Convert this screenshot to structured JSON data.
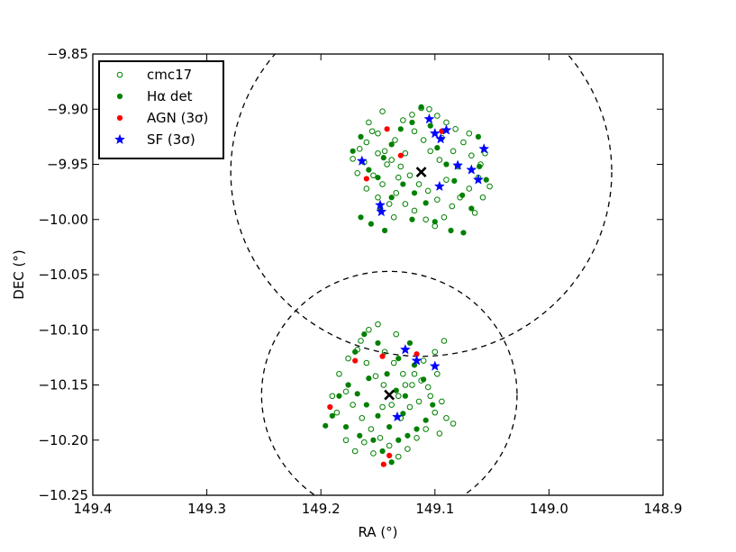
{
  "chart_data": {
    "type": "scatter",
    "xlabel": "RA (°)",
    "ylabel": "DEC (°)",
    "xlim": [
      149.4,
      148.9
    ],
    "ylim": [
      -10.25,
      -9.85
    ],
    "x_ticks": [
      149.4,
      149.3,
      149.2,
      149.1,
      149.0,
      148.9
    ],
    "x_tick_labels": [
      "149.4",
      "149.3",
      "149.2",
      "149.1",
      "149.0",
      "148.9"
    ],
    "y_ticks": [
      -9.85,
      -9.9,
      -9.95,
      -10.0,
      -10.05,
      -10.1,
      -10.15,
      -10.2,
      -10.25
    ],
    "y_tick_labels": [
      "−9.85",
      "−9.90",
      "−9.95",
      "−10.00",
      "−10.05",
      "−10.10",
      "−10.15",
      "−10.20",
      "−10.25"
    ],
    "grid": false,
    "legend_position": "top-left",
    "legend": [
      {
        "label": "cmc17",
        "marker": "open-circle",
        "color": "#008000"
      },
      {
        "label": "Hα det",
        "marker": "circle",
        "color": "#008000"
      },
      {
        "label": "AGN (3σ)",
        "marker": "circle",
        "color": "#ff0000"
      },
      {
        "label": "SF (3σ)",
        "marker": "star",
        "color": "#0000ff"
      }
    ],
    "centers": [
      [
        149.112,
        -9.957
      ],
      [
        149.14,
        -10.159
      ]
    ],
    "circles": [
      {
        "center": [
          149.112,
          -9.957
        ],
        "radius_deg": 0.167
      },
      {
        "center": [
          149.14,
          -10.159
        ],
        "radius_deg": 0.112
      }
    ],
    "series": [
      {
        "name": "cmc17",
        "marker": "open-circle",
        "color": "#008000",
        "points": [
          [
            149.16,
            -9.93
          ],
          [
            149.155,
            -9.92
          ],
          [
            149.15,
            -9.94
          ],
          [
            149.142,
            -9.95
          ],
          [
            149.135,
            -9.928
          ],
          [
            149.128,
            -9.91
          ],
          [
            149.12,
            -9.905
          ],
          [
            149.112,
            -9.899
          ],
          [
            149.105,
            -9.9
          ],
          [
            149.098,
            -9.906
          ],
          [
            149.09,
            -9.912
          ],
          [
            149.082,
            -9.918
          ],
          [
            149.075,
            -9.93
          ],
          [
            149.068,
            -9.942
          ],
          [
            149.06,
            -9.95
          ],
          [
            149.062,
            -9.962
          ],
          [
            149.07,
            -9.972
          ],
          [
            149.078,
            -9.98
          ],
          [
            149.085,
            -9.988
          ],
          [
            149.092,
            -9.998
          ],
          [
            149.1,
            -10.006
          ],
          [
            149.108,
            -10.0
          ],
          [
            149.118,
            -9.992
          ],
          [
            149.126,
            -9.986
          ],
          [
            149.134,
            -9.976
          ],
          [
            149.146,
            -9.968
          ],
          [
            149.154,
            -9.96
          ],
          [
            149.162,
            -9.948
          ],
          [
            149.166,
            -9.936
          ],
          [
            149.158,
            -9.912
          ],
          [
            149.15,
            -9.922
          ],
          [
            149.144,
            -9.938
          ],
          [
            149.138,
            -9.946
          ],
          [
            149.13,
            -9.952
          ],
          [
            149.122,
            -9.96
          ],
          [
            149.114,
            -9.968
          ],
          [
            149.106,
            -9.974
          ],
          [
            149.098,
            -9.982
          ],
          [
            149.09,
            -9.964
          ],
          [
            149.096,
            -9.946
          ],
          [
            149.104,
            -9.938
          ],
          [
            149.11,
            -9.928
          ],
          [
            149.118,
            -9.92
          ],
          [
            149.126,
            -9.94
          ],
          [
            149.132,
            -9.962
          ],
          [
            149.14,
            -9.986
          ],
          [
            149.15,
            -9.98
          ],
          [
            149.16,
            -9.972
          ],
          [
            149.168,
            -9.958
          ],
          [
            149.172,
            -9.945
          ],
          [
            149.08,
            -9.952
          ],
          [
            149.07,
            -9.922
          ],
          [
            149.065,
            -9.994
          ],
          [
            149.058,
            -9.98
          ],
          [
            149.052,
            -9.97
          ],
          [
            149.056,
            -9.94
          ],
          [
            149.084,
            -9.938
          ],
          [
            149.094,
            -9.926
          ],
          [
            149.146,
            -9.902
          ],
          [
            149.136,
            -9.998
          ],
          [
            149.165,
            -10.11
          ],
          [
            149.158,
            -10.1
          ],
          [
            149.15,
            -10.095
          ],
          [
            149.144,
            -10.12
          ],
          [
            149.136,
            -10.13
          ],
          [
            149.128,
            -10.14
          ],
          [
            149.12,
            -10.15
          ],
          [
            149.112,
            -10.146
          ],
          [
            149.104,
            -10.16
          ],
          [
            149.1,
            -10.175
          ],
          [
            149.108,
            -10.19
          ],
          [
            149.116,
            -10.198
          ],
          [
            149.124,
            -10.208
          ],
          [
            149.132,
            -10.215
          ],
          [
            149.14,
            -10.205
          ],
          [
            149.148,
            -10.198
          ],
          [
            149.156,
            -10.19
          ],
          [
            149.164,
            -10.18
          ],
          [
            149.172,
            -10.168
          ],
          [
            149.178,
            -10.156
          ],
          [
            149.184,
            -10.14
          ],
          [
            149.176,
            -10.126
          ],
          [
            149.168,
            -10.118
          ],
          [
            149.16,
            -10.13
          ],
          [
            149.152,
            -10.142
          ],
          [
            149.145,
            -10.15
          ],
          [
            149.138,
            -10.168
          ],
          [
            149.13,
            -10.18
          ],
          [
            149.122,
            -10.17
          ],
          [
            149.114,
            -10.165
          ],
          [
            149.106,
            -10.152
          ],
          [
            149.098,
            -10.14
          ],
          [
            149.094,
            -10.165
          ],
          [
            149.09,
            -10.18
          ],
          [
            149.096,
            -10.194
          ],
          [
            149.178,
            -10.2
          ],
          [
            149.186,
            -10.175
          ],
          [
            149.17,
            -10.21
          ],
          [
            149.162,
            -10.202
          ],
          [
            149.154,
            -10.212
          ],
          [
            149.146,
            -10.17
          ],
          [
            149.132,
            -10.16
          ],
          [
            149.126,
            -10.15
          ],
          [
            149.118,
            -10.14
          ],
          [
            149.11,
            -10.128
          ],
          [
            149.1,
            -10.12
          ],
          [
            149.092,
            -10.11
          ],
          [
            149.084,
            -10.185
          ],
          [
            149.19,
            -10.16
          ],
          [
            149.134,
            -10.104
          ]
        ]
      },
      {
        "name": "Hα det",
        "marker": "circle",
        "color": "#008000",
        "points": [
          [
            149.172,
            -9.938
          ],
          [
            149.165,
            -9.925
          ],
          [
            149.158,
            -9.955
          ],
          [
            149.15,
            -9.962
          ],
          [
            149.145,
            -9.944
          ],
          [
            149.138,
            -9.932
          ],
          [
            149.13,
            -9.918
          ],
          [
            149.12,
            -9.912
          ],
          [
            149.112,
            -9.898
          ],
          [
            149.104,
            -9.915
          ],
          [
            149.098,
            -9.935
          ],
          [
            149.09,
            -9.95
          ],
          [
            149.083,
            -9.965
          ],
          [
            149.076,
            -9.978
          ],
          [
            149.068,
            -9.99
          ],
          [
            149.061,
            -9.952
          ],
          [
            149.055,
            -9.964
          ],
          [
            149.108,
            -9.985
          ],
          [
            149.118,
            -9.976
          ],
          [
            149.128,
            -9.968
          ],
          [
            149.138,
            -9.98
          ],
          [
            149.148,
            -9.99
          ],
          [
            149.156,
            -10.004
          ],
          [
            149.144,
            -10.01
          ],
          [
            149.12,
            -10.0
          ],
          [
            149.1,
            -10.002
          ],
          [
            149.086,
            -10.01
          ],
          [
            149.075,
            -10.012
          ],
          [
            149.165,
            -9.998
          ],
          [
            149.062,
            -9.925
          ],
          [
            149.17,
            -10.12
          ],
          [
            149.162,
            -10.104
          ],
          [
            149.15,
            -10.112
          ],
          [
            149.142,
            -10.14
          ],
          [
            149.134,
            -10.155
          ],
          [
            149.126,
            -10.16
          ],
          [
            149.118,
            -10.132
          ],
          [
            149.11,
            -10.145
          ],
          [
            149.102,
            -10.168
          ],
          [
            149.108,
            -10.182
          ],
          [
            149.116,
            -10.19
          ],
          [
            149.124,
            -10.196
          ],
          [
            149.132,
            -10.2
          ],
          [
            149.14,
            -10.188
          ],
          [
            149.15,
            -10.178
          ],
          [
            149.16,
            -10.168
          ],
          [
            149.168,
            -10.158
          ],
          [
            149.176,
            -10.15
          ],
          [
            149.184,
            -10.16
          ],
          [
            149.19,
            -10.178
          ],
          [
            149.178,
            -10.188
          ],
          [
            149.166,
            -10.196
          ],
          [
            149.154,
            -10.2
          ],
          [
            149.146,
            -10.21
          ],
          [
            149.138,
            -10.22
          ],
          [
            149.128,
            -10.176
          ],
          [
            149.122,
            -10.112
          ],
          [
            149.132,
            -10.126
          ],
          [
            149.196,
            -10.187
          ],
          [
            149.158,
            -10.144
          ]
        ]
      },
      {
        "name": "AGN (3σ)",
        "marker": "circle",
        "color": "#ff0000",
        "points": [
          [
            149.142,
            -9.918
          ],
          [
            149.13,
            -9.942
          ],
          [
            149.16,
            -9.963
          ],
          [
            149.094,
            -9.92
          ],
          [
            149.146,
            -10.124
          ],
          [
            149.116,
            -10.122
          ],
          [
            149.17,
            -10.128
          ],
          [
            149.192,
            -10.17
          ],
          [
            149.14,
            -10.214
          ],
          [
            149.145,
            -10.222
          ]
        ]
      },
      {
        "name": "SF (3σ)",
        "marker": "star",
        "color": "#0000ff",
        "points": [
          [
            149.105,
            -9.909
          ],
          [
            149.1,
            -9.922
          ],
          [
            149.09,
            -9.919
          ],
          [
            149.095,
            -9.927
          ],
          [
            149.08,
            -9.951
          ],
          [
            149.068,
            -9.955
          ],
          [
            149.062,
            -9.964
          ],
          [
            149.057,
            -9.936
          ],
          [
            149.164,
            -9.947
          ],
          [
            149.148,
            -9.987
          ],
          [
            149.147,
            -9.993
          ],
          [
            149.096,
            -9.97
          ],
          [
            149.126,
            -10.118
          ],
          [
            149.116,
            -10.128
          ],
          [
            149.1,
            -10.133
          ],
          [
            149.133,
            -10.179
          ]
        ]
      }
    ]
  }
}
